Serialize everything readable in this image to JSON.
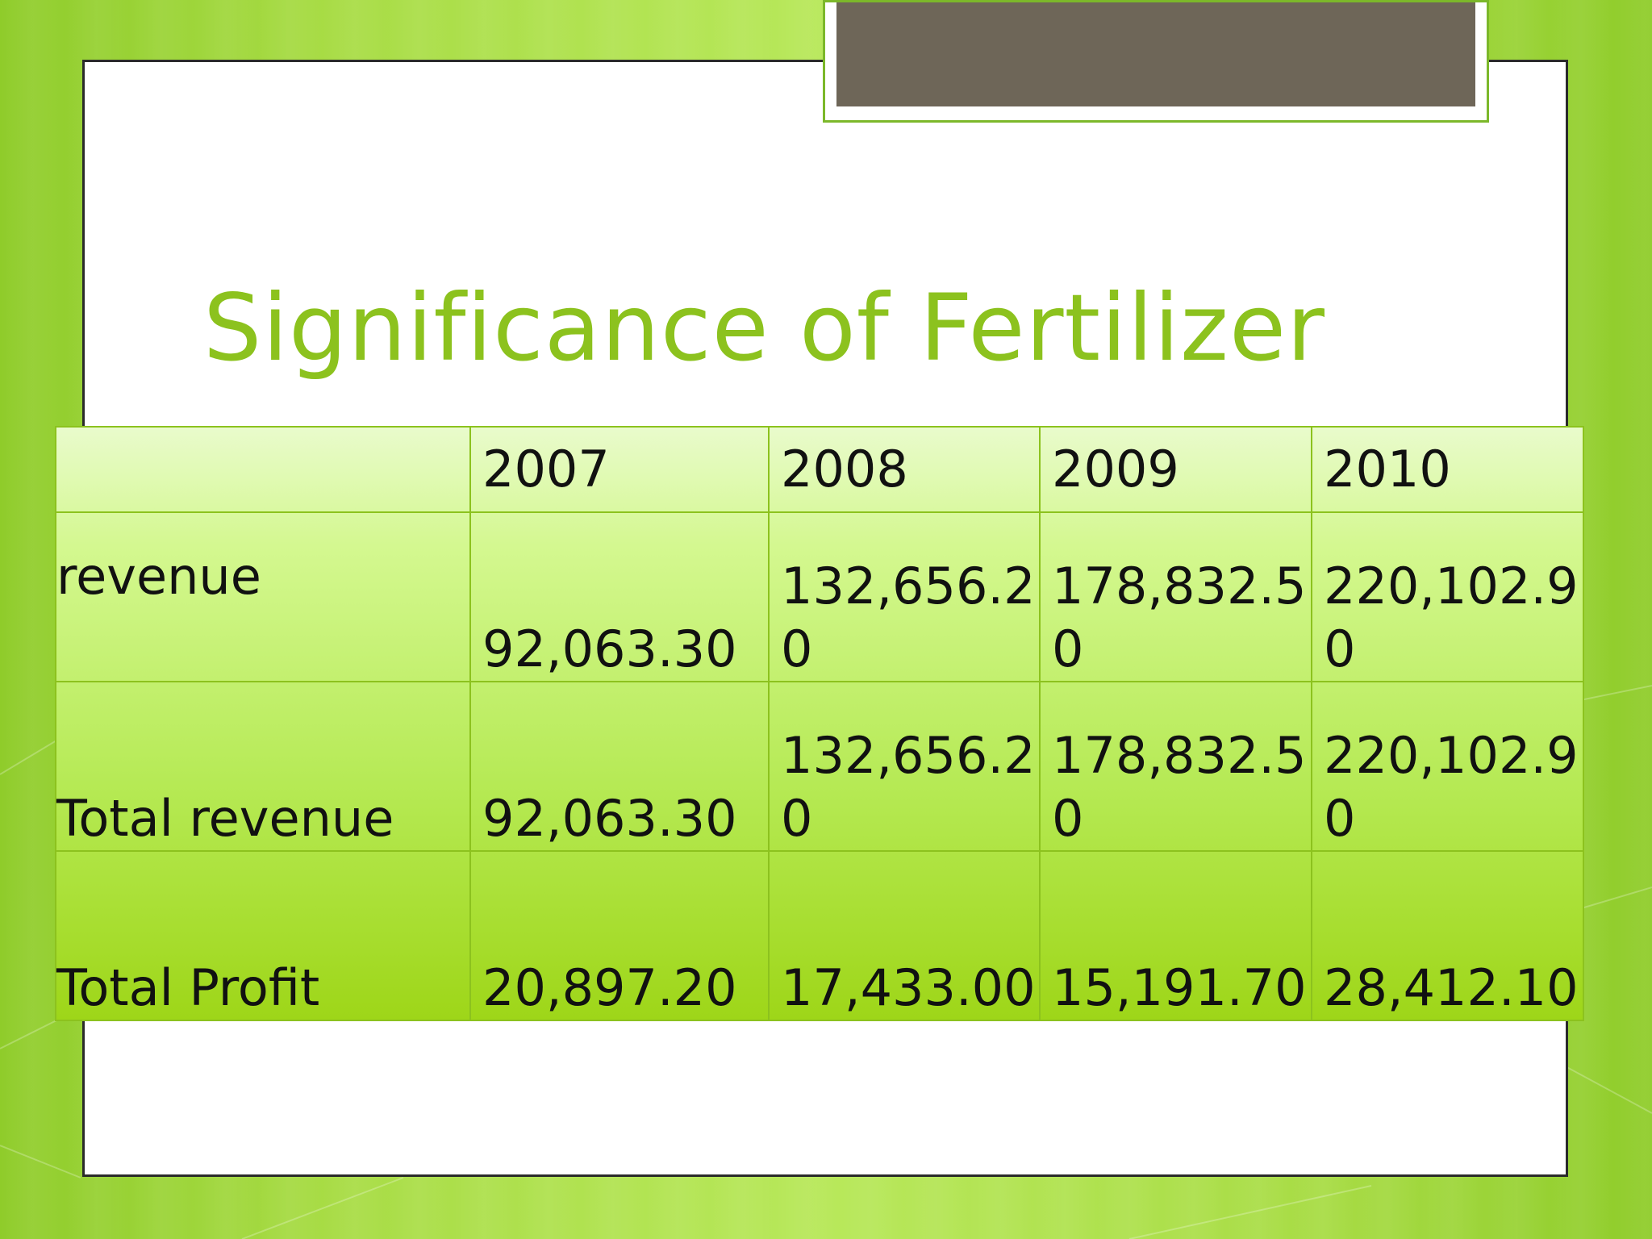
{
  "slide": {
    "title": "Significance of Fertilizer"
  },
  "table": {
    "headers": [
      "",
      "2007",
      "2008",
      "2009",
      "2010"
    ],
    "rows": [
      {
        "label": "revenue",
        "values": [
          "92,063.30",
          "132,656.20",
          "178,832.50",
          "220,102.90"
        ]
      },
      {
        "label": "Total revenue",
        "values": [
          "92,063.30",
          "132,656.20",
          "178,832.50",
          "220,102.90"
        ]
      },
      {
        "label": "Total Profit",
        "values": [
          "20,897.20",
          "17,433.00",
          "15,191.70",
          "28,412.10"
        ]
      }
    ]
  },
  "colors": {
    "background": "#a8dc45",
    "title": "#8cc21e",
    "tab": "#6e6658",
    "table_border": "#8cc21e"
  }
}
